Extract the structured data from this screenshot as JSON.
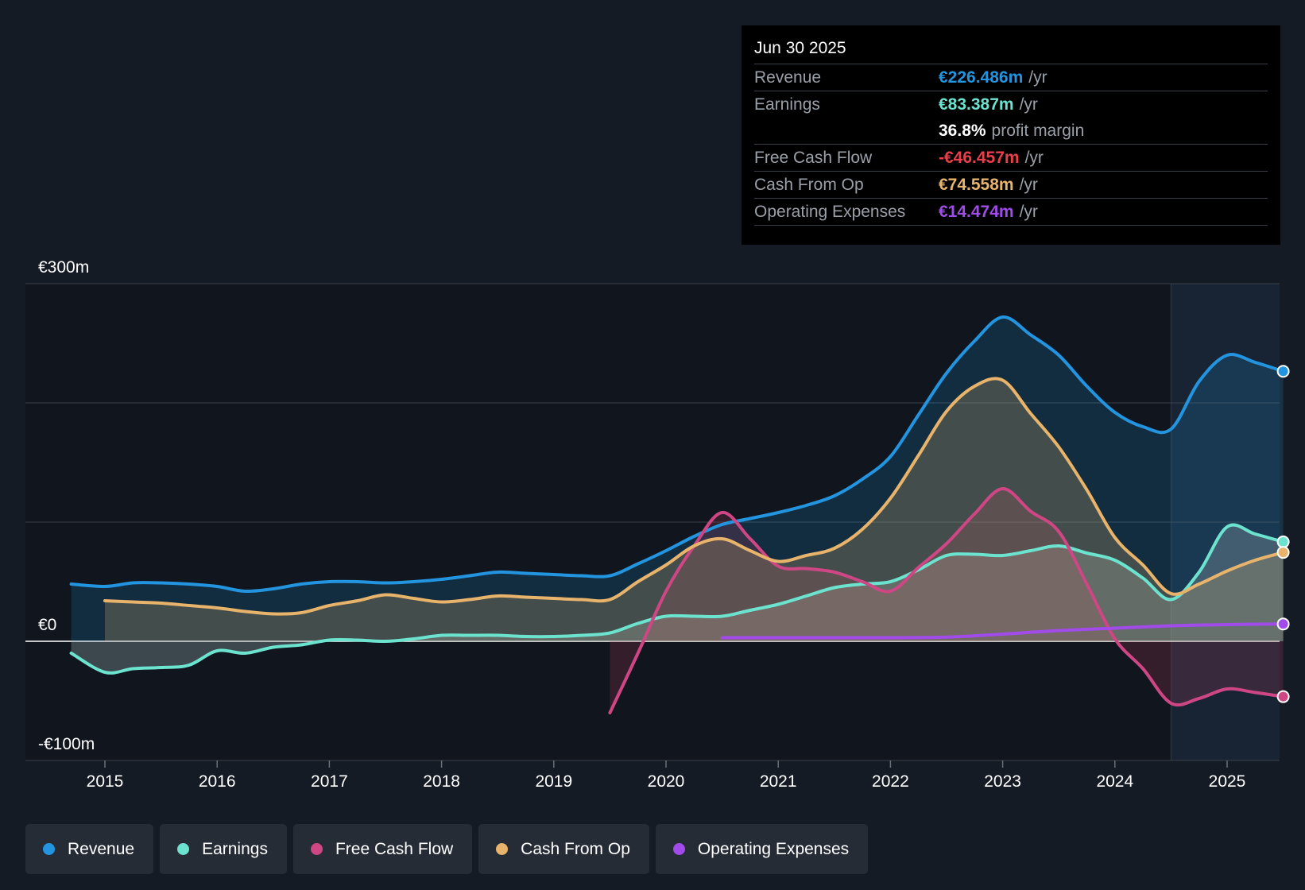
{
  "chart_data": {
    "type": "area",
    "title": "",
    "y_axis": {
      "unit": "€",
      "ylim": [
        -100,
        300
      ],
      "tick_labels": [
        "€300m",
        "€0",
        "-€100m"
      ],
      "gridlines": [
        300,
        200,
        100,
        0,
        -100
      ]
    },
    "x_axis": {
      "xlim": [
        2014.7,
        2025.5
      ],
      "tick_labels": [
        "2015",
        "2016",
        "2017",
        "2018",
        "2019",
        "2020",
        "2021",
        "2022",
        "2023",
        "2024",
        "2025"
      ],
      "ticks": [
        2015,
        2016,
        2017,
        2018,
        2019,
        2020,
        2021,
        2022,
        2023,
        2024,
        2025
      ]
    },
    "highlight_region": [
      2024.5,
      2025.5
    ],
    "series": [
      {
        "name": "Revenue",
        "color": "#2394df",
        "fill": "#2394df",
        "fill_opacity": 0.18,
        "end_marker": true,
        "points": [
          [
            2014.7,
            48
          ],
          [
            2015.0,
            46
          ],
          [
            2015.25,
            49
          ],
          [
            2015.5,
            49
          ],
          [
            2015.75,
            48
          ],
          [
            2016.0,
            46
          ],
          [
            2016.25,
            42
          ],
          [
            2016.5,
            44
          ],
          [
            2016.75,
            48
          ],
          [
            2017.0,
            50
          ],
          [
            2017.25,
            50
          ],
          [
            2017.5,
            49
          ],
          [
            2017.75,
            50
          ],
          [
            2018.0,
            52
          ],
          [
            2018.25,
            55
          ],
          [
            2018.5,
            58
          ],
          [
            2018.75,
            57
          ],
          [
            2019.0,
            56
          ],
          [
            2019.25,
            55
          ],
          [
            2019.5,
            55
          ],
          [
            2019.75,
            65
          ],
          [
            2020.0,
            76
          ],
          [
            2020.25,
            88
          ],
          [
            2020.5,
            98
          ],
          [
            2020.75,
            103
          ],
          [
            2021.0,
            108
          ],
          [
            2021.25,
            114
          ],
          [
            2021.5,
            122
          ],
          [
            2021.75,
            136
          ],
          [
            2022.0,
            155
          ],
          [
            2022.25,
            190
          ],
          [
            2022.5,
            225
          ],
          [
            2022.75,
            252
          ],
          [
            2023.0,
            272
          ],
          [
            2023.25,
            257
          ],
          [
            2023.5,
            240
          ],
          [
            2023.75,
            214
          ],
          [
            2024.0,
            192
          ],
          [
            2024.25,
            180
          ],
          [
            2024.5,
            178
          ],
          [
            2024.75,
            218
          ],
          [
            2025.0,
            240
          ],
          [
            2025.25,
            234
          ],
          [
            2025.5,
            226.486
          ]
        ]
      },
      {
        "name": "Earnings",
        "color": "#6ce3cf",
        "fill": "#8fa3a8",
        "fill_opacity": 0.35,
        "end_marker": true,
        "points": [
          [
            2014.7,
            -10
          ],
          [
            2015.0,
            -26
          ],
          [
            2015.25,
            -23
          ],
          [
            2015.5,
            -22
          ],
          [
            2015.75,
            -20
          ],
          [
            2016.0,
            -8
          ],
          [
            2016.25,
            -10
          ],
          [
            2016.5,
            -5
          ],
          [
            2016.75,
            -3
          ],
          [
            2017.0,
            1
          ],
          [
            2017.25,
            1
          ],
          [
            2017.5,
            0
          ],
          [
            2017.75,
            2
          ],
          [
            2018.0,
            5
          ],
          [
            2018.25,
            5
          ],
          [
            2018.5,
            5
          ],
          [
            2018.75,
            4
          ],
          [
            2019.0,
            4
          ],
          [
            2019.25,
            5
          ],
          [
            2019.5,
            7
          ],
          [
            2019.75,
            15
          ],
          [
            2020.0,
            21
          ],
          [
            2020.25,
            21
          ],
          [
            2020.5,
            21
          ],
          [
            2020.75,
            26
          ],
          [
            2021.0,
            31
          ],
          [
            2021.25,
            38
          ],
          [
            2021.5,
            45
          ],
          [
            2021.75,
            48
          ],
          [
            2022.0,
            50
          ],
          [
            2022.25,
            60
          ],
          [
            2022.5,
            72
          ],
          [
            2022.75,
            73
          ],
          [
            2023.0,
            72
          ],
          [
            2023.25,
            76
          ],
          [
            2023.5,
            80
          ],
          [
            2023.75,
            74
          ],
          [
            2024.0,
            68
          ],
          [
            2024.25,
            53
          ],
          [
            2024.5,
            35
          ],
          [
            2024.75,
            58
          ],
          [
            2025.0,
            96
          ],
          [
            2025.25,
            90
          ],
          [
            2025.5,
            83.387
          ]
        ]
      },
      {
        "name": "Free Cash Flow",
        "color": "#cf4685",
        "fill": "#b03a5e",
        "fill_opacity": 0.22,
        "end_marker": true,
        "points": [
          [
            2019.5,
            -60
          ],
          [
            2019.75,
            -10
          ],
          [
            2020.0,
            42
          ],
          [
            2020.25,
            80
          ],
          [
            2020.5,
            108
          ],
          [
            2020.75,
            86
          ],
          [
            2021.0,
            63
          ],
          [
            2021.25,
            61
          ],
          [
            2021.5,
            58
          ],
          [
            2021.75,
            50
          ],
          [
            2022.0,
            42
          ],
          [
            2022.25,
            62
          ],
          [
            2022.5,
            82
          ],
          [
            2022.75,
            107
          ],
          [
            2023.0,
            128
          ],
          [
            2023.25,
            109
          ],
          [
            2023.5,
            92
          ],
          [
            2023.75,
            48
          ],
          [
            2024.0,
            2
          ],
          [
            2024.25,
            -23
          ],
          [
            2024.5,
            -52
          ],
          [
            2024.75,
            -48
          ],
          [
            2025.0,
            -40
          ],
          [
            2025.25,
            -43
          ],
          [
            2025.5,
            -46.457
          ]
        ]
      },
      {
        "name": "Cash From Op",
        "color": "#e8b36b",
        "fill": "#d4b06a",
        "fill_opacity": 0.25,
        "end_marker": true,
        "points": [
          [
            2015.0,
            34
          ],
          [
            2015.25,
            33
          ],
          [
            2015.5,
            32
          ],
          [
            2015.75,
            30
          ],
          [
            2016.0,
            28
          ],
          [
            2016.25,
            25
          ],
          [
            2016.5,
            23
          ],
          [
            2016.75,
            24
          ],
          [
            2017.0,
            30
          ],
          [
            2017.25,
            34
          ],
          [
            2017.5,
            39
          ],
          [
            2017.75,
            36
          ],
          [
            2018.0,
            33
          ],
          [
            2018.25,
            35
          ],
          [
            2018.5,
            38
          ],
          [
            2018.75,
            37
          ],
          [
            2019.0,
            36
          ],
          [
            2019.25,
            35
          ],
          [
            2019.5,
            35
          ],
          [
            2019.75,
            50
          ],
          [
            2020.0,
            64
          ],
          [
            2020.25,
            80
          ],
          [
            2020.5,
            86
          ],
          [
            2020.75,
            76
          ],
          [
            2021.0,
            67
          ],
          [
            2021.25,
            72
          ],
          [
            2021.5,
            78
          ],
          [
            2021.75,
            94
          ],
          [
            2022.0,
            120
          ],
          [
            2022.25,
            156
          ],
          [
            2022.5,
            193
          ],
          [
            2022.75,
            214
          ],
          [
            2023.0,
            219
          ],
          [
            2023.25,
            191
          ],
          [
            2023.5,
            163
          ],
          [
            2023.75,
            127
          ],
          [
            2024.0,
            87
          ],
          [
            2024.25,
            64
          ],
          [
            2024.5,
            40
          ],
          [
            2024.75,
            48
          ],
          [
            2025.0,
            59
          ],
          [
            2025.25,
            68
          ],
          [
            2025.5,
            74.558
          ]
        ]
      },
      {
        "name": "Operating Expenses",
        "color": "#a04bea",
        "fill": "none",
        "fill_opacity": 0,
        "end_marker": true,
        "points": [
          [
            2020.5,
            3
          ],
          [
            2021.0,
            3
          ],
          [
            2021.5,
            3
          ],
          [
            2022.0,
            3
          ],
          [
            2022.5,
            3.5
          ],
          [
            2023.0,
            6
          ],
          [
            2023.5,
            9
          ],
          [
            2024.0,
            11
          ],
          [
            2024.5,
            13
          ],
          [
            2025.0,
            14
          ],
          [
            2025.5,
            14.474
          ]
        ]
      }
    ]
  },
  "tooltip": {
    "date": "Jun 30 2025",
    "rows": [
      {
        "label": "Revenue",
        "value": "€226.486m",
        "unit": "/yr",
        "color": "#2394df"
      },
      {
        "label": "Earnings",
        "value": "€83.387m",
        "unit": "/yr",
        "color": "#6ce3cf"
      },
      {
        "label": "",
        "value": "36.8%",
        "unit": "profit margin",
        "color": "#ffffff"
      },
      {
        "label": "Free Cash Flow",
        "value": "-€46.457m",
        "unit": "/yr",
        "color": "#e8404a"
      },
      {
        "label": "Cash From Op",
        "value": "€74.558m",
        "unit": "/yr",
        "color": "#e8b36b"
      },
      {
        "label": "Operating Expenses",
        "value": "€14.474m",
        "unit": "/yr",
        "color": "#a04bea"
      }
    ]
  },
  "legend": [
    {
      "label": "Revenue",
      "color": "#2394df"
    },
    {
      "label": "Earnings",
      "color": "#6ce3cf"
    },
    {
      "label": "Free Cash Flow",
      "color": "#cf4685"
    },
    {
      "label": "Cash From Op",
      "color": "#e8b36b"
    },
    {
      "label": "Operating Expenses",
      "color": "#a04bea"
    }
  ]
}
